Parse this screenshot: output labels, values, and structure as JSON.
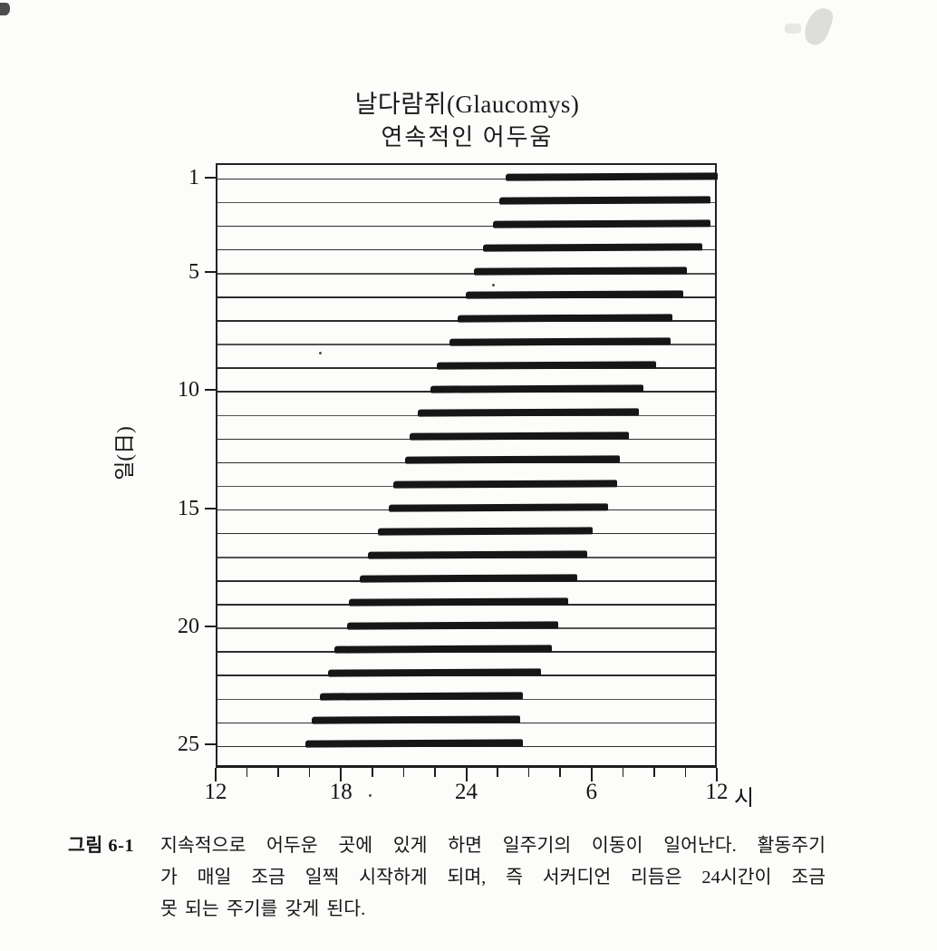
{
  "page": {
    "background": "#fcfcfa",
    "ink": "#1b1b1b",
    "bar_color": "#161616",
    "description": "Scanned textbook figure: actogram of flying squirrel activity in continuous darkness"
  },
  "title": {
    "line1": "날다람쥐(Glaucomys)",
    "line2": "연속적인 어두움"
  },
  "y_axis": {
    "label": "일(日)",
    "tick_days": [
      1,
      5,
      10,
      15,
      20,
      25
    ]
  },
  "x_axis": {
    "unit": "시",
    "range_hours": [
      12,
      36
    ],
    "major_hours": [
      12,
      18,
      24,
      30,
      36
    ],
    "major_labels": [
      "12",
      "18",
      "24",
      "6",
      "12"
    ],
    "minor_step_hours": 1.5
  },
  "chart_data": {
    "type": "bar",
    "variant": "actogram",
    "title": "날다람쥐(Glaucomys) 연속적인 어두움",
    "xlabel": "시",
    "ylabel": "일(日)",
    "x_range_hours": [
      12,
      36
    ],
    "hour_convention": "12 = noon day d; 24 = midnight; 36 = noon day d+1",
    "num_days": 25,
    "days": [
      1,
      2,
      3,
      4,
      5,
      6,
      7,
      8,
      9,
      10,
      11,
      12,
      13,
      14,
      15,
      16,
      17,
      18,
      19,
      20,
      21,
      22,
      23,
      24,
      25
    ],
    "activity_onset_hour": [
      25.8,
      25.5,
      25.2,
      24.7,
      24.3,
      23.9,
      23.5,
      23.1,
      22.5,
      22.2,
      21.6,
      21.2,
      21.0,
      20.4,
      20.2,
      19.7,
      19.2,
      18.8,
      18.3,
      18.2,
      17.6,
      17.3,
      16.9,
      16.5,
      16.2
    ],
    "activity_end_hour": [
      36.0,
      35.6,
      35.6,
      35.2,
      34.5,
      34.3,
      33.8,
      33.7,
      33.0,
      32.4,
      32.2,
      31.7,
      31.3,
      31.1,
      30.7,
      30.0,
      29.7,
      29.2,
      28.8,
      28.3,
      28.0,
      27.5,
      26.6,
      26.5,
      26.6
    ],
    "grid": "one horizontal line per day",
    "legend": "none"
  },
  "caption": {
    "label": "그림 6-1",
    "lines": [
      "지속적으로 어두운 곳에 있게 하면 일주기의 이동이 일어난다. 활동주기",
      "가 매일 조금 일찍 시작하게 되며, 즉 서커디언 리듬은 24시간이 조금",
      "못 되는 주기를 갖게 된다."
    ]
  }
}
